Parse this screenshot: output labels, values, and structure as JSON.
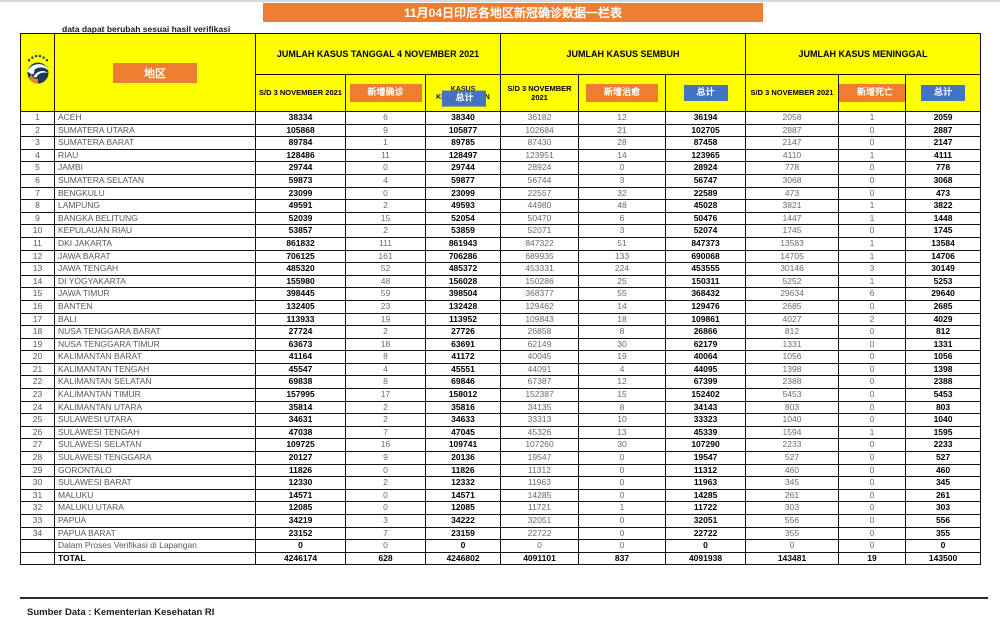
{
  "title": "11月04日印尼各地区新冠确诊数据一栏表",
  "note": "data dapat berubah sesuai hasil verifikasi",
  "footer": "Sumber Data : Kementerian Kesehatan RI",
  "colors": {
    "title_bg": "#ED7D31",
    "header_bg": "#FFFF00",
    "badge_orange": "#ED7D31",
    "badge_blue": "#4472C4",
    "border": "#141414"
  },
  "table": {
    "region_header": "地区",
    "groups": [
      {
        "title": "JUMLAH KASUS TANGGAL 4 NOVEMBER 2021",
        "sub_prev": "S/D 3 NOVEMBER 2021",
        "badge_new": "新增确诊",
        "sub_total_text": "KASUS KESELURUHAN",
        "badge_total": "总计"
      },
      {
        "title": "JUMLAH KASUS SEMBUH",
        "sub_prev": "S/D 3 NOVEMBER 2021",
        "badge_new": "新增治愈",
        "sub_total_text": "",
        "badge_total": "总计"
      },
      {
        "title": "JUMLAH KASUS MENINGGAL",
        "sub_prev": "S/D 3 NOVEMBER 2021",
        "badge_new": "新增死亡",
        "sub_total_text": "",
        "badge_total": "总计"
      }
    ],
    "rows": [
      {
        "kind": "data",
        "cells": [
          "1",
          "ACEH",
          "38334",
          "6",
          "38340",
          "36182",
          "12",
          "36194",
          "2058",
          "1",
          "2059"
        ]
      },
      {
        "kind": "data",
        "cells": [
          "2",
          "SUMATERA UTARA",
          "105868",
          "9",
          "105877",
          "102684",
          "21",
          "102705",
          "2887",
          "0",
          "2887"
        ]
      },
      {
        "kind": "data",
        "cells": [
          "3",
          "SUMATERA BARAT",
          "89784",
          "1",
          "89785",
          "87430",
          "28",
          "87458",
          "2147",
          "0",
          "2147"
        ]
      },
      {
        "kind": "data",
        "cells": [
          "4",
          "RIAU",
          "128486",
          "11",
          "128497",
          "123951",
          "14",
          "123965",
          "4110",
          "1",
          "4111"
        ]
      },
      {
        "kind": "data",
        "cells": [
          "5",
          "JAMBI",
          "29744",
          "0",
          "29744",
          "28924",
          "0",
          "28924",
          "778",
          "0",
          "778"
        ]
      },
      {
        "kind": "data",
        "cells": [
          "6",
          "SUMATERA SELATAN",
          "59873",
          "4",
          "59877",
          "56744",
          "3",
          "56747",
          "3068",
          "0",
          "3068"
        ]
      },
      {
        "kind": "data",
        "cells": [
          "7",
          "BENGKULU",
          "23099",
          "0",
          "23099",
          "22557",
          "32",
          "22589",
          "473",
          "0",
          "473"
        ]
      },
      {
        "kind": "data",
        "cells": [
          "8",
          "LAMPUNG",
          "49591",
          "2",
          "49593",
          "44980",
          "48",
          "45028",
          "3821",
          "1",
          "3822"
        ]
      },
      {
        "kind": "data",
        "cells": [
          "9",
          "BANGKA BELITUNG",
          "52039",
          "15",
          "52054",
          "50470",
          "6",
          "50476",
          "1447",
          "1",
          "1448"
        ]
      },
      {
        "kind": "data",
        "cells": [
          "10",
          "KEPULAUAN RIAU",
          "53857",
          "2",
          "53859",
          "52071",
          "3",
          "52074",
          "1745",
          "0",
          "1745"
        ]
      },
      {
        "kind": "data",
        "cells": [
          "11",
          "DKI JAKARTA",
          "861832",
          "111",
          "861943",
          "847322",
          "51",
          "847373",
          "13583",
          "1",
          "13584"
        ]
      },
      {
        "kind": "data",
        "cells": [
          "12",
          "JAWA BARAT",
          "706125",
          "161",
          "706286",
          "689935",
          "133",
          "690068",
          "14705",
          "1",
          "14706"
        ]
      },
      {
        "kind": "data",
        "cells": [
          "13",
          "JAWA TENGAH",
          "485320",
          "52",
          "485372",
          "453331",
          "224",
          "453555",
          "30146",
          "3",
          "30149"
        ]
      },
      {
        "kind": "data",
        "cells": [
          "14",
          "DI YOGYAKARTA",
          "155980",
          "48",
          "156028",
          "150286",
          "25",
          "150311",
          "5252",
          "1",
          "5253"
        ]
      },
      {
        "kind": "data",
        "cells": [
          "15",
          "JAWA TIMUR",
          "398445",
          "59",
          "398504",
          "368377",
          "55",
          "368432",
          "29634",
          "6",
          "29640"
        ]
      },
      {
        "kind": "data",
        "cells": [
          "16",
          "BANTEN",
          "132405",
          "23",
          "132428",
          "129462",
          "14",
          "129476",
          "2685",
          "0",
          "2685"
        ]
      },
      {
        "kind": "data",
        "cells": [
          "17",
          "BALI",
          "113933",
          "19",
          "113952",
          "109843",
          "18",
          "109861",
          "4027",
          "2",
          "4029"
        ]
      },
      {
        "kind": "data",
        "cells": [
          "18",
          "NUSA TENGGARA BARAT",
          "27724",
          "2",
          "27726",
          "26858",
          "8",
          "26866",
          "812",
          "0",
          "812"
        ]
      },
      {
        "kind": "data",
        "cells": [
          "19",
          "NUSA TENGGARA TIMUR",
          "63673",
          "18",
          "63691",
          "62149",
          "30",
          "62179",
          "1331",
          "0",
          "1331"
        ]
      },
      {
        "kind": "data",
        "cells": [
          "20",
          "KALIMANTAN BARAT",
          "41164",
          "8",
          "41172",
          "40045",
          "19",
          "40064",
          "1056",
          "0",
          "1056"
        ]
      },
      {
        "kind": "data",
        "cells": [
          "21",
          "KALIMANTAN TENGAH",
          "45547",
          "4",
          "45551",
          "44091",
          "4",
          "44095",
          "1398",
          "0",
          "1398"
        ]
      },
      {
        "kind": "data",
        "cells": [
          "22",
          "KALIMANTAN SELATAN",
          "69838",
          "8",
          "69846",
          "67387",
          "12",
          "67399",
          "2388",
          "0",
          "2388"
        ]
      },
      {
        "kind": "data",
        "cells": [
          "23",
          "KALIMANTAN TIMUR",
          "157995",
          "17",
          "158012",
          "152387",
          "15",
          "152402",
          "5453",
          "0",
          "5453"
        ]
      },
      {
        "kind": "data",
        "cells": [
          "24",
          "KALIMANTAN UTARA",
          "35814",
          "2",
          "35816",
          "34135",
          "8",
          "34143",
          "803",
          "0",
          "803"
        ]
      },
      {
        "kind": "data",
        "cells": [
          "25",
          "SULAWESI UTARA",
          "34631",
          "2",
          "34633",
          "33313",
          "10",
          "33323",
          "1040",
          "0",
          "1040"
        ]
      },
      {
        "kind": "data",
        "cells": [
          "26",
          "SULAWESI TENGAH",
          "47038",
          "7",
          "47045",
          "45326",
          "13",
          "45339",
          "1594",
          "1",
          "1595"
        ]
      },
      {
        "kind": "data",
        "cells": [
          "27",
          "SULAWESI SELATAN",
          "109725",
          "16",
          "109741",
          "107260",
          "30",
          "107290",
          "2233",
          "0",
          "2233"
        ]
      },
      {
        "kind": "data",
        "cells": [
          "28",
          "SULAWESI TENGGARA",
          "20127",
          "9",
          "20136",
          "19547",
          "0",
          "19547",
          "527",
          "0",
          "527"
        ]
      },
      {
        "kind": "data",
        "cells": [
          "29",
          "GORONTALO",
          "11826",
          "0",
          "11826",
          "11312",
          "0",
          "11312",
          "460",
          "0",
          "460"
        ]
      },
      {
        "kind": "data",
        "cells": [
          "30",
          "SULAWESI BARAT",
          "12330",
          "2",
          "12332",
          "11963",
          "0",
          "11963",
          "345",
          "0",
          "345"
        ]
      },
      {
        "kind": "data",
        "cells": [
          "31",
          "MALUKU",
          "14571",
          "0",
          "14571",
          "14285",
          "0",
          "14285",
          "261",
          "0",
          "261"
        ]
      },
      {
        "kind": "data",
        "cells": [
          "32",
          "MALUKU UTARA",
          "12085",
          "0",
          "12085",
          "11721",
          "1",
          "11722",
          "303",
          "0",
          "303"
        ]
      },
      {
        "kind": "data",
        "cells": [
          "33",
          "PAPUA",
          "34219",
          "3",
          "34222",
          "32051",
          "0",
          "32051",
          "556",
          "0",
          "556"
        ]
      },
      {
        "kind": "data",
        "cells": [
          "34",
          "PAPUA BARAT",
          "23152",
          "7",
          "23159",
          "22722",
          "0",
          "22722",
          "355",
          "0",
          "355"
        ]
      },
      {
        "kind": "verify",
        "cells": [
          "",
          "Dalam Proses Verifikasi di Lapangan",
          "0",
          "0",
          "0",
          "0",
          "0",
          "0",
          "0",
          "0",
          "0"
        ]
      },
      {
        "kind": "total",
        "cells": [
          "",
          "TOTAL",
          "4246174",
          "628",
          "4246802",
          "4091101",
          "837",
          "4091938",
          "143481",
          "19",
          "143500"
        ]
      }
    ]
  }
}
